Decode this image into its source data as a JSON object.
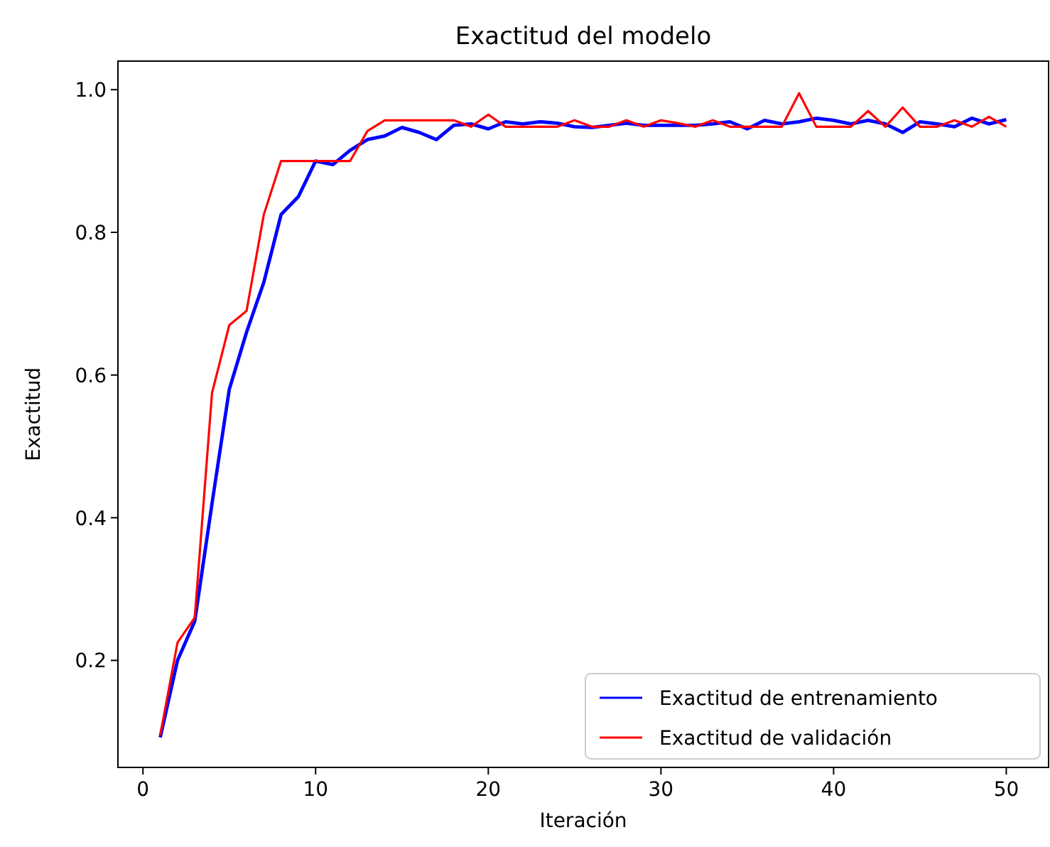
{
  "chart_data": {
    "type": "line",
    "title": "Exactitud del modelo",
    "xlabel": "Iteración",
    "ylabel": "Exactitud",
    "x": [
      1,
      2,
      3,
      4,
      5,
      6,
      7,
      8,
      9,
      10,
      11,
      12,
      13,
      14,
      15,
      16,
      17,
      18,
      19,
      20,
      21,
      22,
      23,
      24,
      25,
      26,
      27,
      28,
      29,
      30,
      31,
      32,
      33,
      34,
      35,
      36,
      37,
      38,
      39,
      40,
      41,
      42,
      43,
      44,
      45,
      46,
      47,
      48,
      49,
      50
    ],
    "series": [
      {
        "name": "Exactitud de entrenamiento",
        "color": "#0000ff",
        "values": [
          0.092,
          0.2,
          0.255,
          0.42,
          0.58,
          0.66,
          0.73,
          0.825,
          0.85,
          0.9,
          0.895,
          0.915,
          0.93,
          0.935,
          0.947,
          0.94,
          0.93,
          0.95,
          0.952,
          0.945,
          0.955,
          0.952,
          0.955,
          0.953,
          0.948,
          0.947,
          0.95,
          0.953,
          0.95,
          0.95,
          0.95,
          0.95,
          0.952,
          0.955,
          0.945,
          0.957,
          0.952,
          0.955,
          0.96,
          0.957,
          0.952,
          0.957,
          0.952,
          0.94,
          0.955,
          0.952,
          0.948,
          0.96,
          0.952,
          0.958
        ]
      },
      {
        "name": "Exactitud de validación",
        "color": "#ff0000",
        "values": [
          0.095,
          0.225,
          0.26,
          0.575,
          0.67,
          0.69,
          0.825,
          0.9,
          0.9,
          0.9,
          0.9,
          0.9,
          0.942,
          0.957,
          0.957,
          0.957,
          0.957,
          0.957,
          0.948,
          0.965,
          0.948,
          0.948,
          0.948,
          0.948,
          0.957,
          0.948,
          0.948,
          0.957,
          0.948,
          0.957,
          0.953,
          0.948,
          0.957,
          0.948,
          0.948,
          0.948,
          0.948,
          0.995,
          0.948,
          0.948,
          0.948,
          0.97,
          0.948,
          0.975,
          0.948,
          0.948,
          0.957,
          0.948,
          0.962,
          0.948
        ]
      }
    ],
    "xlim": [
      -1.45,
      52.45
    ],
    "xticks": [
      0,
      10,
      20,
      30,
      40,
      50
    ],
    "ylim": [
      0.05,
      1.04
    ],
    "yticks": [
      {
        "value": 0.2,
        "label": "0.2"
      },
      {
        "value": 0.4,
        "label": "0.4"
      },
      {
        "value": 0.6,
        "label": "0.6"
      },
      {
        "value": 0.8,
        "label": "0.8"
      },
      {
        "value": 1.0,
        "label": "1.0"
      }
    ],
    "legend": "bottom right",
    "line_style": "solid"
  }
}
